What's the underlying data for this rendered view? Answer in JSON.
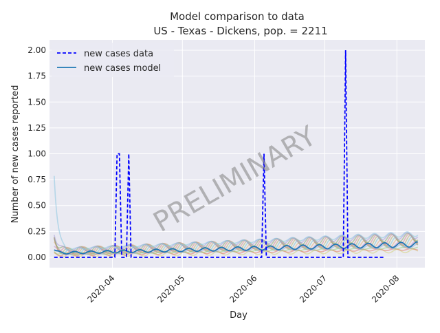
{
  "chart_data": {
    "type": "line",
    "title_line1": "Model comparison to data",
    "title_line2": "US - Texas - Dickens, pop. = 2211",
    "xlabel": "Day",
    "ylabel": "Number of new cases reported",
    "x_range": [
      "2020-03-05",
      "2020-08-13"
    ],
    "ylim": [
      -0.1,
      2.1
    ],
    "y_ticks": [
      0.0,
      0.25,
      0.5,
      0.75,
      1.0,
      1.25,
      1.5,
      1.75,
      2.0
    ],
    "y_tick_labels": [
      "0.00",
      "0.25",
      "0.50",
      "0.75",
      "1.00",
      "1.25",
      "1.50",
      "1.75",
      "2.00"
    ],
    "x_ticks": [
      "2020-04-01",
      "2020-05-01",
      "2020-06-01",
      "2020-07-01",
      "2020-08-01"
    ],
    "x_tick_labels": [
      "2020-04",
      "2020-05",
      "2020-06",
      "2020-07",
      "2020-08"
    ],
    "grid": true,
    "legend_position": "top-left",
    "watermark": "PRELIMINARY",
    "series": [
      {
        "name": "new cases data",
        "style": "dashed",
        "color": "#0000ff",
        "start_date": "2020-03-07",
        "end_date": "2020-07-27",
        "points": [
          {
            "x": "2020-04-03",
            "y": 1.0
          },
          {
            "x": "2020-04-04",
            "y": 1.0
          },
          {
            "x": "2020-04-08",
            "y": 1.0
          },
          {
            "x": "2020-06-05",
            "y": 1.0
          },
          {
            "x": "2020-07-10",
            "y": 2.0
          }
        ]
      },
      {
        "name": "new cases model",
        "style": "solid",
        "color": "#1f77b4",
        "start_date": "2020-03-07",
        "end_date": "2020-08-10",
        "base": 0.03,
        "growth": 0.07,
        "amplitude": 0.035,
        "period_days": 7
      }
    ],
    "ensemble": {
      "count": 12,
      "colors": [
        "#d6d27a",
        "#e07a6a",
        "#9ccf84",
        "#8fb0d8",
        "#c98fc9",
        "#e7b27a",
        "#7fc8c8",
        "#b8b06a",
        "#d88a8a",
        "#8aa86a",
        "#a89ad8",
        "#88c4e0"
      ],
      "opacity": 0.55
    }
  }
}
